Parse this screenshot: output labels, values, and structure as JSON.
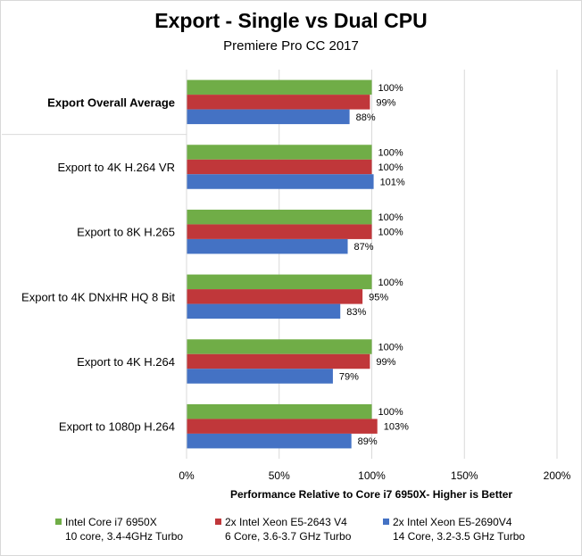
{
  "chart_data": {
    "type": "bar",
    "orientation": "horizontal",
    "title": "Export - Single vs Dual CPU",
    "subtitle": "Premiere Pro CC 2017",
    "xlabel": "Performance Relative to Core i7 6950X- Higher is Better",
    "xlim": [
      0,
      200
    ],
    "xticks": [
      "0%",
      "50%",
      "100%",
      "150%",
      "200%"
    ],
    "grid": true,
    "legend_position": "bottom",
    "categories": [
      "Export Overall Average",
      "Export to 4K H.264 VR",
      "Export to 8K H.265",
      "Export to 4K DNxHR HQ 8 Bit",
      "Export to 4K H.264",
      "Export to 1080p H.264"
    ],
    "bold_categories": [
      "Export Overall Average"
    ],
    "series": [
      {
        "name": "Intel Core i7 6950X",
        "detail": "10 core, 3.4-4GHz Turbo",
        "color": "#70ad47",
        "values": [
          100,
          100,
          100,
          100,
          100,
          100
        ],
        "labels": [
          "100%",
          "100%",
          "100%",
          "100%",
          "100%",
          "100%"
        ]
      },
      {
        "name": "2x Intel Xeon E5-2643 V4",
        "detail": "6 Core, 3.6-3.7 GHz Turbo",
        "color": "#c0373a",
        "values": [
          99,
          100,
          100,
          95,
          99,
          103
        ],
        "labels": [
          "99%",
          "100%",
          "100%",
          "95%",
          "99%",
          "103%"
        ]
      },
      {
        "name": "2x Intel Xeon E5-2690V4",
        "detail": "14 Core, 3.2-3.5 GHz Turbo",
        "color": "#4472c4",
        "values": [
          88,
          101,
          87,
          83,
          79,
          89
        ],
        "labels": [
          "88%",
          "101%",
          "87%",
          "83%",
          "79%",
          "89%"
        ]
      }
    ]
  }
}
